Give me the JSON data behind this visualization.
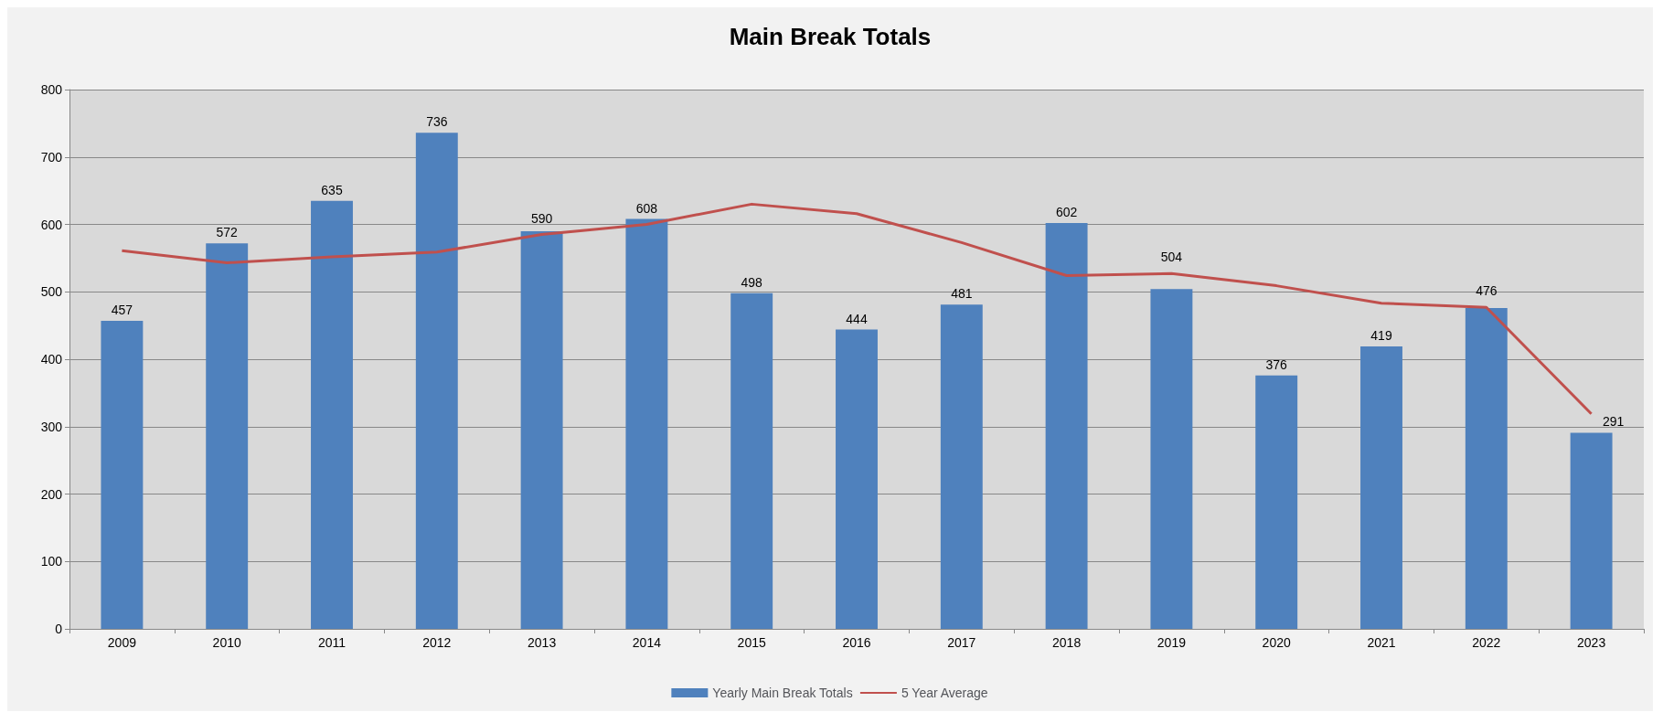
{
  "chart_data": {
    "type": "bar",
    "title": "Main Break Totals",
    "categories": [
      "2009",
      "2010",
      "2011",
      "2012",
      "2013",
      "2014",
      "2015",
      "2016",
      "2017",
      "2018",
      "2019",
      "2020",
      "2021",
      "2022",
      "2023"
    ],
    "series": [
      {
        "name": "Yearly Main Break Totals",
        "type": "bar",
        "color": "#4f81bd",
        "data_labels": true,
        "values": [
          457,
          572,
          635,
          736,
          590,
          608,
          498,
          444,
          481,
          602,
          504,
          376,
          419,
          476,
          291
        ]
      },
      {
        "name": "5 Year Average",
        "type": "line",
        "color": "#c0504d",
        "marker": "none",
        "values": [
          561,
          543,
          552,
          559,
          585,
          600,
          630,
          616,
          573,
          524,
          527,
          509,
          483,
          477,
          319
        ]
      }
    ],
    "ylim": [
      0,
      800
    ],
    "yticks": [
      0,
      100,
      200,
      300,
      400,
      500,
      600,
      700,
      800
    ],
    "grid": "y",
    "legend": "bottom"
  }
}
